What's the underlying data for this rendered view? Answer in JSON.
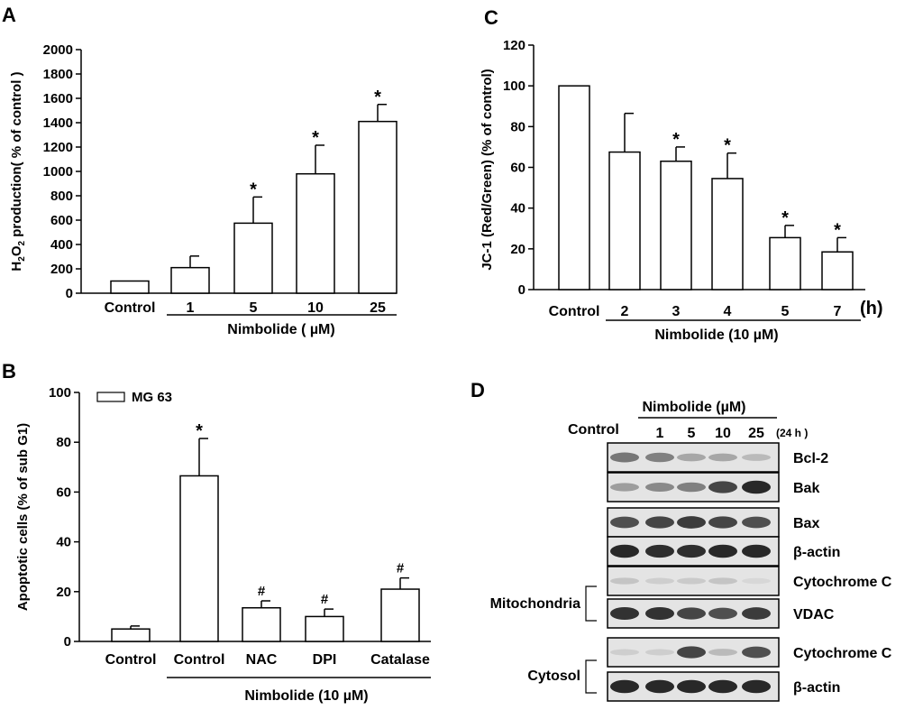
{
  "chart_data": [
    {
      "panel": "A",
      "type": "bar",
      "ylabel": "H2O2 production( % of control )",
      "ylim": [
        0,
        2000
      ],
      "yticks": [
        0,
        200,
        400,
        600,
        800,
        1000,
        1200,
        1400,
        1600,
        1800,
        2000
      ],
      "categories": [
        "Control",
        "1",
        "5",
        "10",
        "25"
      ],
      "values": [
        100,
        210,
        575,
        980,
        1410
      ],
      "errors": [
        0,
        95,
        215,
        235,
        140
      ],
      "annotations": [
        "",
        "",
        "*",
        "*",
        "*"
      ],
      "group_label": "Nimbolide ( µM)"
    },
    {
      "panel": "B",
      "type": "bar",
      "ylabel": "Apoptotic cells (% of sub G1)",
      "ylim": [
        0,
        100
      ],
      "yticks": [
        0,
        20,
        40,
        60,
        80,
        100
      ],
      "legend": "MG 63",
      "categories": [
        "Control",
        "Control",
        "NAC",
        "DPI",
        "Catalase"
      ],
      "values": [
        5,
        66.5,
        13.5,
        10,
        21
      ],
      "errors": [
        1.2,
        15,
        2.8,
        3,
        4.5
      ],
      "annotations": [
        "",
        "*",
        "#",
        "#",
        "#"
      ],
      "group_label": "Nimbolide (10 µM)"
    },
    {
      "panel": "C",
      "type": "bar",
      "ylabel": "JC-1 (Red/Green) (% of control)",
      "ylim": [
        0,
        120
      ],
      "yticks": [
        0,
        20,
        40,
        60,
        80,
        100,
        120
      ],
      "categories": [
        "Control",
        "2",
        "3",
        "4",
        "5",
        "7"
      ],
      "values": [
        100,
        67.5,
        63,
        54.5,
        25.5,
        18.5
      ],
      "errors": [
        0,
        19,
        7,
        12.5,
        6,
        7
      ],
      "annotations": [
        "",
        "",
        "*",
        "*",
        "*",
        "*"
      ],
      "unit_label": "(h)",
      "group_label": "Nimbolide (10 µM)"
    }
  ],
  "westernBlot": {
    "panel": "D",
    "treatmentLabel": "Nimbolide (µM)",
    "controlLabel": "Control",
    "lanes": [
      "1",
      "5",
      "10",
      "25"
    ],
    "timeLabel": "(24 h )",
    "rows": [
      {
        "label": "Bcl-2",
        "intensity": [
          0.55,
          0.5,
          0.3,
          0.3,
          0.2
        ]
      },
      {
        "label": "Bak",
        "intensity": [
          0.35,
          0.45,
          0.5,
          0.8,
          0.95
        ]
      },
      {
        "label": "Bax",
        "intensity": [
          0.75,
          0.8,
          0.85,
          0.8,
          0.75
        ]
      },
      {
        "label": "β-actin",
        "intensity": [
          0.95,
          0.92,
          0.92,
          0.95,
          0.95
        ]
      },
      {
        "label": "Cytochrome C",
        "intensity": [
          0.15,
          0.1,
          0.12,
          0.15,
          0.05
        ]
      },
      {
        "label": "VDAC",
        "intensity": [
          0.9,
          0.9,
          0.8,
          0.75,
          0.85
        ]
      },
      {
        "label": "Cytochrome C",
        "intensity": [
          0.1,
          0.1,
          0.8,
          0.2,
          0.75
        ]
      },
      {
        "label": "β-actin",
        "intensity": [
          0.95,
          0.95,
          0.95,
          0.95,
          0.95
        ]
      }
    ],
    "groups": [
      "Mitochondria",
      "Cytosol"
    ]
  }
}
